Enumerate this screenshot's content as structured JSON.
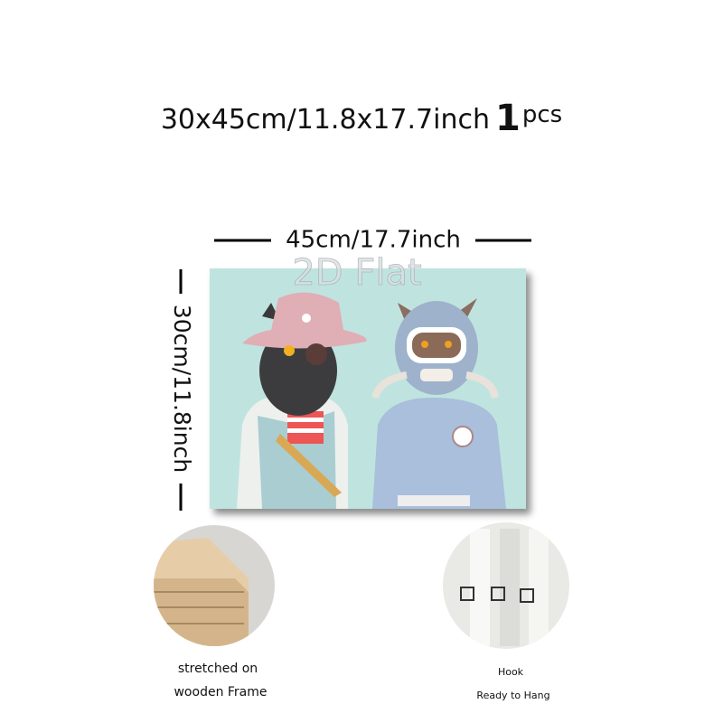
{
  "header": {
    "size": "30x45cm/11.8x17.7inch",
    "quantity": "1",
    "unit": "pcs"
  },
  "dimensions": {
    "width": "45cm/17.7inch",
    "height": "30cm/11.8inch"
  },
  "artwork": {
    "watermark": "2D Flat"
  },
  "features": [
    {
      "lines": [
        "stretched on",
        "wooden Frame"
      ]
    },
    {
      "lines": [
        "Hook",
        "Ready to Hang"
      ]
    }
  ]
}
